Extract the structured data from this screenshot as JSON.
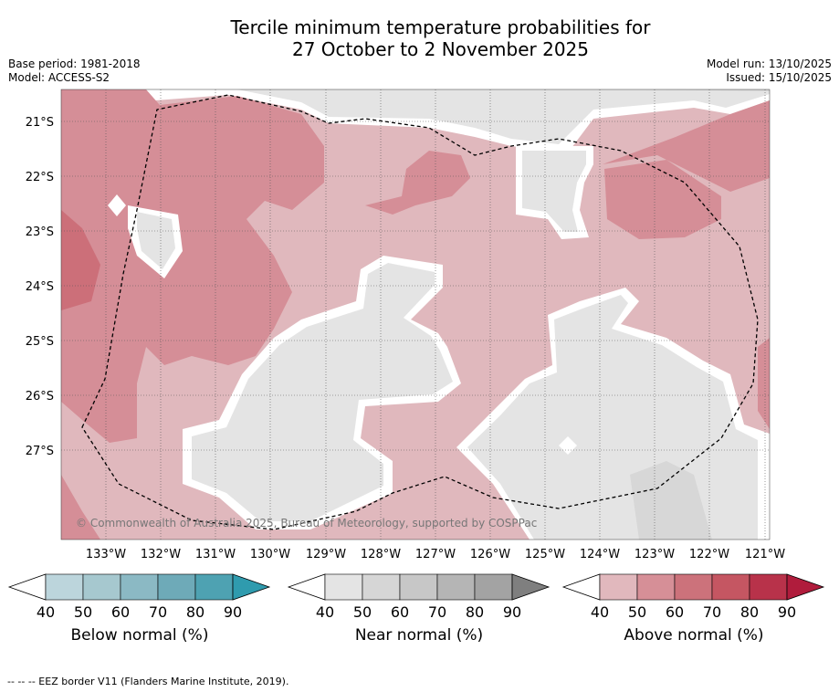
{
  "title": {
    "line1": "Tercile minimum temperature probabilities for",
    "line2": "27 October to 2 November 2025"
  },
  "meta": {
    "base_period": "Base period: 1981-2018",
    "model": "Model: ACCESS-S2",
    "model_run": "Model run: 13/10/2025",
    "issued": "Issued: 15/10/2025"
  },
  "map": {
    "lat_labels": [
      "21°S",
      "22°S",
      "23°S",
      "24°S",
      "25°S",
      "26°S",
      "27°S"
    ],
    "lon_labels": [
      "133°W",
      "132°W",
      "131°W",
      "130°W",
      "129°W",
      "128°W",
      "127°W",
      "126°W",
      "125°W",
      "124°W",
      "123°W",
      "122°W",
      "121°W"
    ],
    "copyright": "© Commonwealth of Australia 2025, Bureau of Meteorology, supported by COSPPac",
    "colors": {
      "above_40": "#e0b8bd",
      "above_50": "#d58e97",
      "above_60": "#cc6f79",
      "near_40": "#e4e4e4",
      "near_50": "#d7d7d7"
    }
  },
  "colorbars": [
    {
      "label": "Below normal (%)",
      "ticks": [
        "40",
        "50",
        "60",
        "70",
        "80",
        "90"
      ],
      "colors": [
        "#bcd5dc",
        "#a6c8cf",
        "#8bb9c4",
        "#6eaab8",
        "#4ea2b2",
        "#2f9bae"
      ]
    },
    {
      "label": "Near normal (%)",
      "ticks": [
        "40",
        "50",
        "60",
        "70",
        "80",
        "90"
      ],
      "colors": [
        "#e4e4e4",
        "#d6d6d6",
        "#c7c7c7",
        "#b5b5b5",
        "#a3a3a3",
        "#7f7f7f"
      ]
    },
    {
      "label": "Above normal (%)",
      "ticks": [
        "40",
        "50",
        "60",
        "70",
        "80",
        "90"
      ],
      "colors": [
        "#e1b8bd",
        "#d68f97",
        "#cc727b",
        "#c55662",
        "#b8324a",
        "#b01c3c"
      ]
    }
  ],
  "footnote": "-- -- -- EEZ border V11 (Flanders Marine Institute, 2019)."
}
